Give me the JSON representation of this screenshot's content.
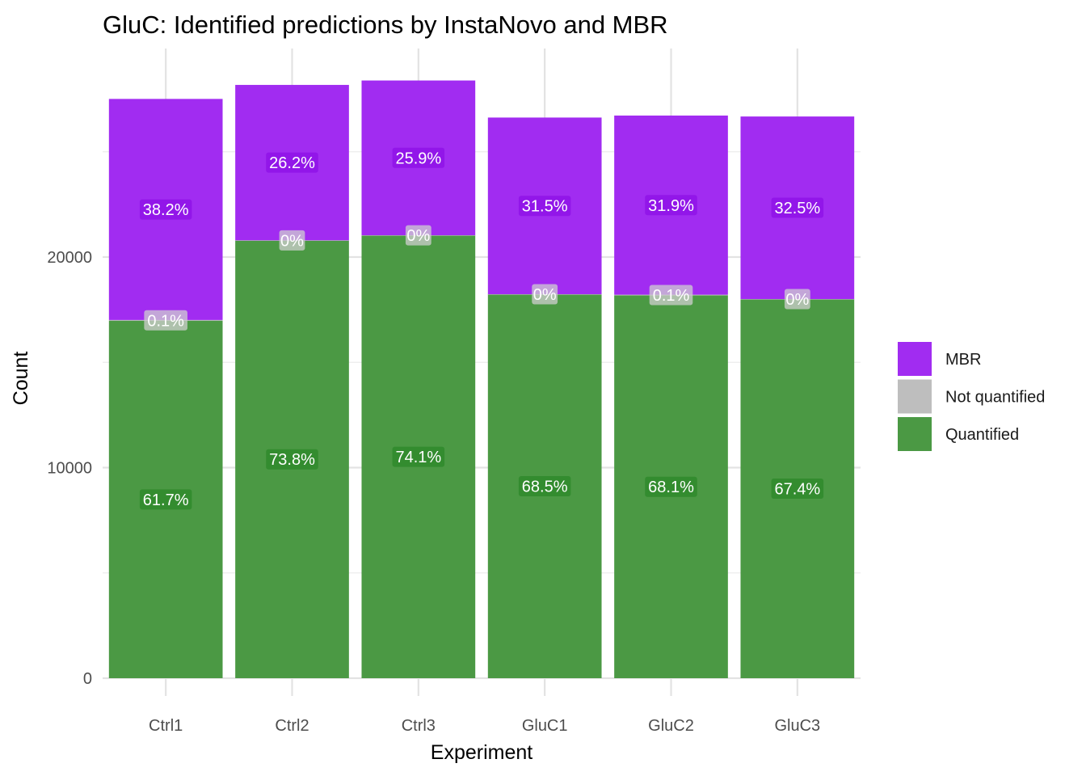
{
  "chart_data": {
    "type": "bar",
    "stacked": true,
    "title": "GluC: Identified predictions by InstaNovo and MBR",
    "xlabel": "Experiment",
    "ylabel": "Count",
    "ylim": [
      0,
      28500
    ],
    "y_ticks": [
      0,
      10000,
      20000
    ],
    "categories": [
      "Ctrl1",
      "Ctrl2",
      "Ctrl3",
      "GluC1",
      "GluC2",
      "GluC3"
    ],
    "series": [
      {
        "name": "Quantified",
        "color": "#4b9944",
        "values": [
          16980,
          20790,
          21030,
          18230,
          18180,
          18000
        ],
        "labels": [
          "61.7%",
          "73.8%",
          "74.1%",
          "68.5%",
          "68.1%",
          "67.4%"
        ]
      },
      {
        "name": "Not quantified",
        "color": "#bebebe",
        "values": [
          30,
          5,
          5,
          5,
          30,
          5
        ],
        "labels": [
          "0.1%",
          "0%",
          "0%",
          "0%",
          "0.1%",
          "0%"
        ]
      },
      {
        "name": "MBR",
        "color": "#a12cf1",
        "values": [
          10500,
          7380,
          7350,
          8390,
          8510,
          8670
        ],
        "labels": [
          "38.2%",
          "26.2%",
          "25.9%",
          "31.5%",
          "31.9%",
          "32.5%"
        ]
      }
    ],
    "legend": {
      "position": "right",
      "items": [
        "MBR",
        "Not quantified",
        "Quantified"
      ]
    },
    "grid": true
  }
}
